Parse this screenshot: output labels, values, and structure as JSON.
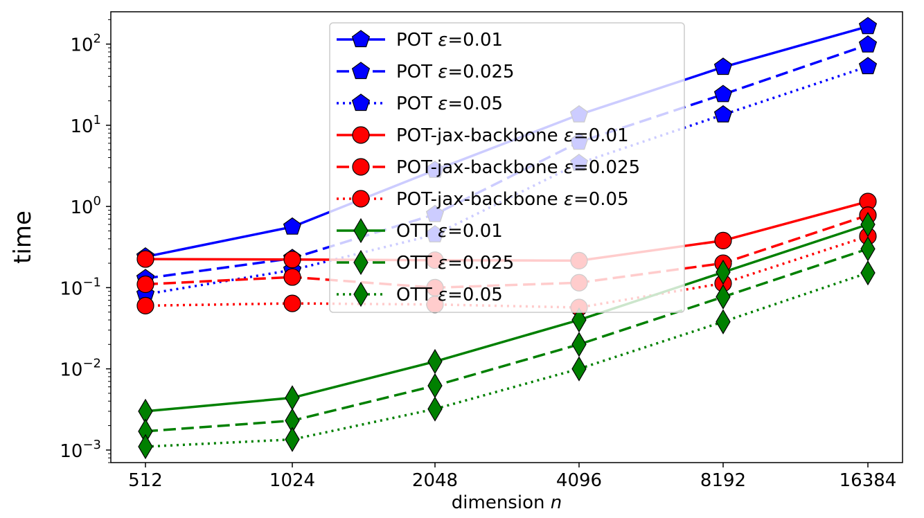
{
  "chart_data": {
    "type": "line",
    "title": "",
    "xlabel": "dimension",
    "xlabel_var": "n",
    "ylabel": "time",
    "yscale": "log",
    "ylim": [
      0.0007,
      250
    ],
    "yticks": [
      {
        "value": 0.001,
        "exp": "−3"
      },
      {
        "value": 0.01,
        "exp": "−2"
      },
      {
        "value": 0.1,
        "exp": "−1"
      },
      {
        "value": 1,
        "exp": "0"
      },
      {
        "value": 10,
        "exp": "1"
      },
      {
        "value": 100,
        "exp": "2"
      }
    ],
    "ytick_base": "10",
    "categories": [
      "512",
      "1024",
      "2048",
      "4096",
      "8192",
      "16384"
    ],
    "grid": false,
    "legend_position": "upper-center",
    "series": [
      {
        "name": "POT",
        "eps": "0.01",
        "color": "#0000ff",
        "style": "solid",
        "marker": "pentagon",
        "values": [
          0.24,
          0.56,
          2.8,
          13.5,
          52,
          165
        ]
      },
      {
        "name": "POT",
        "eps": "0.025",
        "color": "#0000ff",
        "style": "dashed",
        "marker": "pentagon",
        "values": [
          0.13,
          0.23,
          0.8,
          6.2,
          24,
          98
        ]
      },
      {
        "name": "POT",
        "eps": "0.05",
        "color": "#0000ff",
        "style": "dotted",
        "marker": "pentagon",
        "values": [
          0.083,
          0.165,
          0.45,
          3.4,
          13.5,
          53
        ]
      },
      {
        "name": "POT-jax-backbone",
        "eps": "0.01",
        "color": "#ff0000",
        "style": "solid",
        "marker": "circle",
        "values": [
          0.225,
          0.222,
          0.218,
          0.215,
          0.38,
          1.15
        ]
      },
      {
        "name": "POT-jax-backbone",
        "eps": "0.025",
        "color": "#ff0000",
        "style": "dashed",
        "marker": "circle",
        "values": [
          0.11,
          0.135,
          0.1,
          0.115,
          0.2,
          0.78
        ]
      },
      {
        "name": "POT-jax-backbone",
        "eps": "0.05",
        "color": "#ff0000",
        "style": "dotted",
        "marker": "circle",
        "values": [
          0.06,
          0.064,
          0.062,
          0.057,
          0.113,
          0.43
        ]
      },
      {
        "name": "OTT",
        "eps": "0.01",
        "color": "#008000",
        "style": "solid",
        "marker": "diamond",
        "values": [
          0.003,
          0.0044,
          0.0123,
          0.04,
          0.155,
          0.6
        ]
      },
      {
        "name": "OTT",
        "eps": "0.025",
        "color": "#008000",
        "style": "dashed",
        "marker": "diamond",
        "values": [
          0.0017,
          0.0023,
          0.0062,
          0.02,
          0.077,
          0.3
        ]
      },
      {
        "name": "OTT",
        "eps": "0.05",
        "color": "#008000",
        "style": "dotted",
        "marker": "diamond",
        "values": [
          0.0011,
          0.00135,
          0.0032,
          0.01,
          0.038,
          0.152
        ]
      }
    ]
  }
}
